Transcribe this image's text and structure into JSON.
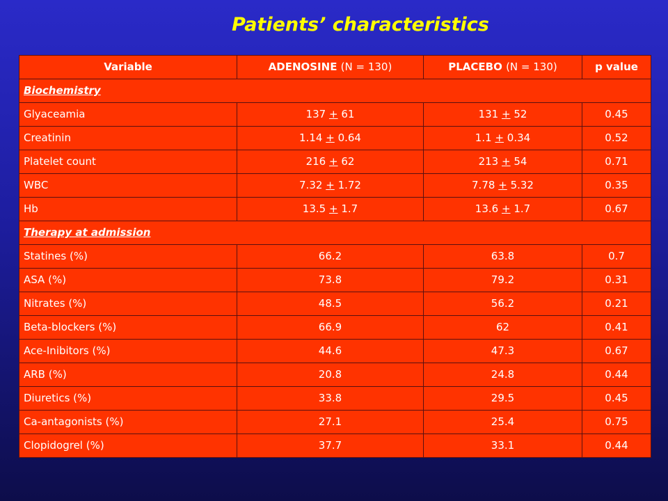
{
  "title": "Patients’ characteristics",
  "table": {
    "headers": {
      "variable": "Variable",
      "group1_name": "ADENOSINE",
      "group1_n": "(N = 130)",
      "group2_name": "PLACEBO",
      "group2_n": "(N = 130)",
      "pvalue": "p value"
    },
    "sections": [
      {
        "title": "Biochemistry",
        "rows": [
          {
            "variable": "Glyaceamia",
            "a_mean": "137",
            "a_sd": "61",
            "b_mean": "131",
            "b_sd": "52",
            "p": "0.45"
          },
          {
            "variable": "Creatinin",
            "a_mean": "1.14",
            "a_sd": "0.64",
            "b_mean": "1.1",
            "b_sd": "0.34",
            "p": "0.52"
          },
          {
            "variable": "Platelet count",
            "a_mean": "216",
            "a_sd": "62",
            "b_mean": "213",
            "b_sd": "54",
            "p": "0.71"
          },
          {
            "variable": "WBC",
            "a_mean": "7.32",
            "a_sd": "1.72",
            "b_mean": "7.78",
            "b_sd": "5.32",
            "p": "0.35"
          },
          {
            "variable": "Hb",
            "a_mean": "13.5",
            "a_sd": "1.7",
            "b_mean": "13.6",
            "b_sd": "1.7",
            "p": "0.67"
          }
        ]
      },
      {
        "title": "Therapy at admission",
        "rows": [
          {
            "variable": "Statines (%)",
            "a": "66.2",
            "b": "63.8",
            "p": "0.7"
          },
          {
            "variable": "ASA (%)",
            "a": "73.8",
            "b": "79.2",
            "p": "0.31"
          },
          {
            "variable": "Nitrates (%)",
            "a": "48.5",
            "b": "56.2",
            "p": "0.21"
          },
          {
            "variable": "Beta-blockers (%)",
            "a": "66.9",
            "b": "62",
            "p": "0.41"
          },
          {
            "variable": "Ace-Inibitors (%)",
            "a": "44.6",
            "b": "47.3",
            "p": "0.67"
          },
          {
            "variable": "ARB (%)",
            "a": "20.8",
            "b": "24.8",
            "p": "0.44"
          },
          {
            "variable": "Diuretics (%)",
            "a": "33.8",
            "b": "29.5",
            "p": "0.45"
          },
          {
            "variable": "Ca-antagonists (%)",
            "a": "27.1",
            "b": "25.4",
            "p": "0.75"
          },
          {
            "variable": "Clopidogrel (%)",
            "a": "37.7",
            "b": "33.1",
            "p": "0.44"
          }
        ]
      }
    ],
    "pm_symbol": "+"
  },
  "colors": {
    "background": "#1d1d9e",
    "title": "#ffff00",
    "table_fill": "#ff3300",
    "text": "#ffffff"
  }
}
